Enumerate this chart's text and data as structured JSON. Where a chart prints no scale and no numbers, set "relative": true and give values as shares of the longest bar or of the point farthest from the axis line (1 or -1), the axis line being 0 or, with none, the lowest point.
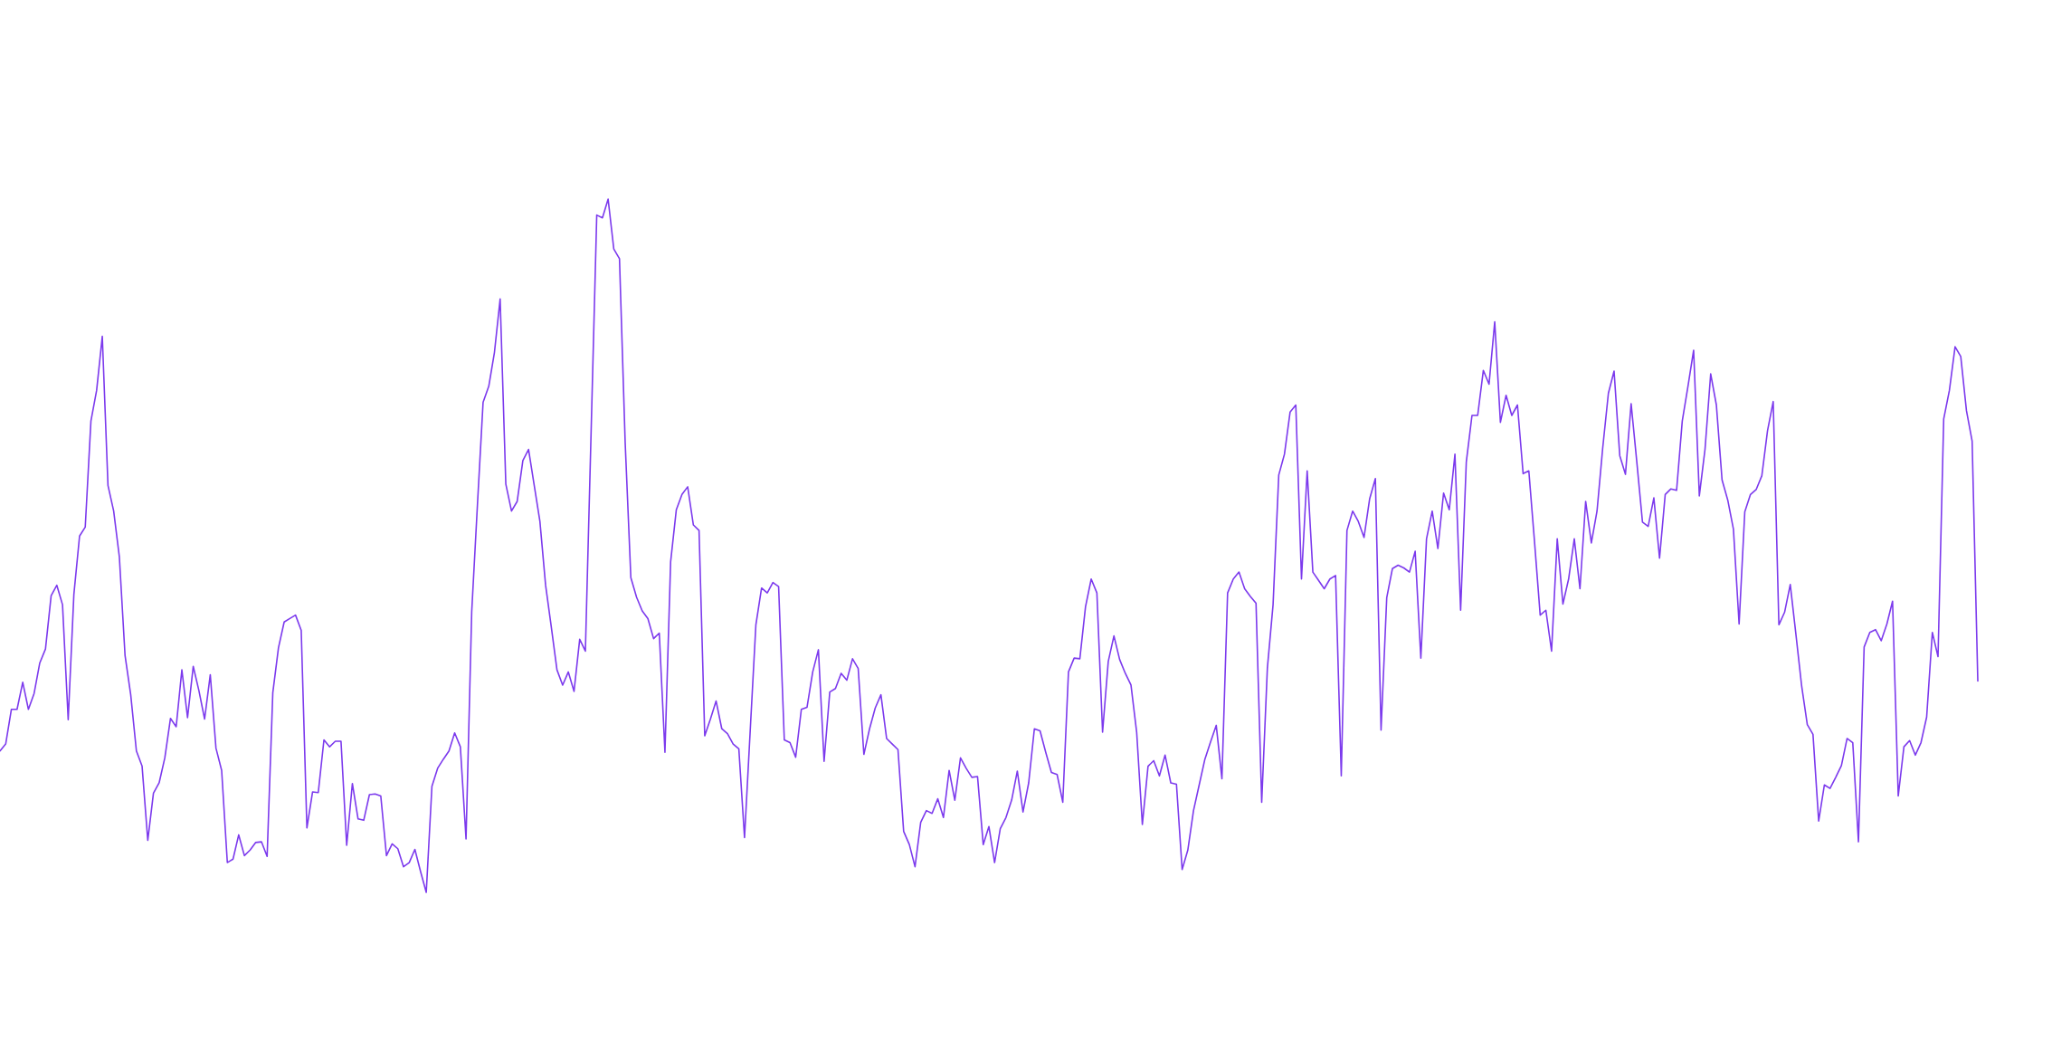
{
  "chart_data": {
    "type": "line",
    "relative": true,
    "color": "#7c3aed",
    "categories": [
      null,
      null,
      null,
      null,
      null,
      null,
      null,
      null,
      null,
      null,
      null,
      null,
      null,
      null,
      null,
      null,
      null,
      null,
      null,
      null,
      null,
      null,
      null,
      null,
      null,
      null,
      null,
      null,
      null,
      null,
      null,
      null,
      null,
      null,
      null,
      null,
      null,
      null,
      null,
      null,
      null,
      null,
      null,
      null,
      null,
      null,
      null,
      null,
      null,
      null,
      null,
      null,
      null,
      null,
      null,
      null,
      null,
      null,
      null,
      null,
      null,
      null,
      null,
      null,
      null,
      null,
      null,
      null,
      null,
      null,
      null,
      null,
      null,
      null,
      null,
      null,
      null,
      null,
      null,
      null,
      null,
      null,
      null,
      null,
      null,
      null,
      null,
      null,
      null,
      null,
      null,
      null,
      null,
      null,
      null,
      null,
      null,
      null,
      null,
      null,
      null,
      null,
      null,
      null,
      null,
      null,
      null,
      null,
      null,
      null,
      null,
      null,
      null,
      null,
      null,
      null,
      null,
      null,
      null,
      null,
      null,
      null,
      null,
      null,
      null,
      null,
      null,
      null,
      null,
      null,
      null,
      null,
      null,
      null,
      null,
      null,
      null,
      null,
      null,
      null,
      null,
      null,
      null,
      null,
      null,
      null,
      null,
      null,
      null,
      null,
      null,
      null,
      null,
      null,
      null,
      null,
      null,
      null,
      null,
      null,
      null,
      null,
      null,
      null,
      null,
      null,
      null,
      null,
      null,
      null,
      null,
      null,
      null,
      null,
      null,
      null,
      null,
      null,
      null,
      null,
      null,
      null,
      null,
      null,
      null,
      null,
      null,
      null,
      null,
      null,
      null,
      null,
      null,
      null,
      null,
      null,
      null,
      null,
      null,
      null,
      null,
      null,
      null,
      null,
      null,
      null,
      null,
      null,
      null,
      null,
      null,
      null,
      null,
      null,
      null,
      null,
      null,
      null,
      null,
      null,
      null,
      null,
      null,
      null,
      null,
      null,
      null,
      null,
      null,
      null,
      null,
      null,
      null,
      null,
      null,
      null,
      null,
      null,
      null,
      null,
      null,
      null,
      null,
      null,
      null,
      null,
      null,
      null,
      null,
      null,
      null,
      null,
      null,
      null,
      null,
      null,
      null,
      null,
      null,
      null,
      null,
      null,
      null,
      null,
      null,
      null,
      null,
      null,
      null,
      null,
      null,
      null,
      null,
      null,
      null,
      null,
      null,
      null,
      null,
      null,
      null,
      null,
      null,
      null,
      null,
      null,
      null,
      null,
      null,
      null,
      null,
      null,
      null,
      null,
      null,
      null,
      null,
      null,
      null,
      null,
      null,
      null,
      null,
      null,
      null,
      null,
      null,
      null,
      null,
      null,
      null,
      null,
      null,
      null,
      null,
      null,
      null,
      null,
      null,
      null,
      null,
      null,
      null,
      null,
      null,
      null,
      null,
      null,
      null,
      null,
      null,
      null,
      null,
      null,
      null,
      null,
      null,
      null,
      null,
      null,
      null,
      null,
      null,
      null,
      null,
      null,
      null,
      null,
      null
    ],
    "values": [
      0.204,
      0.214,
      0.264,
      0.264,
      0.303,
      0.264,
      0.287,
      0.331,
      0.351,
      0.428,
      0.443,
      0.415,
      0.249,
      0.43,
      0.514,
      0.527,
      0.68,
      0.724,
      0.802,
      0.587,
      0.55,
      0.484,
      0.342,
      0.285,
      0.204,
      0.182,
      0.075,
      0.143,
      0.158,
      0.194,
      0.251,
      0.239,
      0.321,
      0.252,
      0.326,
      0.291,
      0.25,
      0.314,
      0.208,
      0.176,
      0.043,
      0.048,
      0.083,
      0.053,
      0.061,
      0.072,
      0.073,
      0.052,
      0.288,
      0.353,
      0.39,
      0.395,
      0.4,
      0.378,
      0.093,
      0.145,
      0.144,
      0.22,
      0.21,
      0.218,
      0.218,
      0.068,
      0.157,
      0.106,
      0.104,
      0.141,
      0.142,
      0.139,
      0.053,
      0.07,
      0.063,
      0.037,
      0.043,
      0.062,
      0.03,
      0,
      0.153,
      0.179,
      0.192,
      0.204,
      0.23,
      0.21,
      0.077,
      0.405,
      0.558,
      0.707,
      0.73,
      0.779,
      0.856,
      0.589,
      0.55,
      0.564,
      0.623,
      0.639,
      0.587,
      0.535,
      0.443,
      0.383,
      0.321,
      0.299,
      0.318,
      0.29,
      0.365,
      0.348,
      0.662,
      0.977,
      0.973,
      1,
      0.928,
      0.914,
      0.649,
      0.454,
      0.426,
      0.406,
      0.395,
      0.366,
      0.374,
      0.202,
      0.477,
      0.552,
      0.574,
      0.585,
      0.53,
      0.522,
      0.226,
      0.25,
      0.276,
      0.236,
      0.229,
      0.214,
      0.207,
      0.079,
      0.233,
      0.386,
      0.439,
      0.432,
      0.447,
      0.441,
      0.22,
      0.216,
      0.195,
      0.264,
      0.267,
      0.318,
      0.35,
      0.189,
      0.289,
      0.294,
      0.316,
      0.306,
      0.337,
      0.323,
      0.199,
      0.236,
      0.266,
      0.285,
      0.222,
      0.214,
      0.206,
      0.088,
      0.069,
      0.037,
      0.101,
      0.118,
      0.114,
      0.135,
      0.108,
      0.176,
      0.133,
      0.194,
      0.179,
      0.166,
      0.167,
      0.069,
      0.095,
      0.043,
      0.092,
      0.108,
      0.133,
      0.175,
      0.116,
      0.158,
      0.236,
      0.233,
      0.202,
      0.173,
      0.17,
      0.13,
      0.318,
      0.338,
      0.337,
      0.412,
      0.452,
      0.432,
      0.231,
      0.333,
      0.37,
      0.336,
      0.316,
      0.299,
      0.231,
      0.098,
      0.182,
      0.19,
      0.168,
      0.198,
      0.158,
      0.156,
      0.033,
      0.061,
      0.118,
      0.155,
      0.192,
      0.217,
      0.241,
      0.164,
      0.432,
      0.452,
      0.462,
      0.438,
      0.427,
      0.417,
      0.13,
      0.324,
      0.415,
      0.602,
      0.632,
      0.693,
      0.703,
      0.452,
      0.608,
      0.462,
      0.45,
      0.438,
      0.452,
      0.457,
      0.168,
      0.522,
      0.55,
      0.535,
      0.512,
      0.568,
      0.597,
      0.234,
      0.425,
      0.467,
      0.472,
      0.468,
      0.462,
      0.492,
      0.338,
      0.51,
      0.55,
      0.496,
      0.576,
      0.552,
      0.632,
      0.407,
      0.621,
      0.688,
      0.688,
      0.753,
      0.733,
      0.823,
      0.678,
      0.717,
      0.688,
      0.703,
      0.604,
      0.608,
      0.506,
      0.4,
      0.407,
      0.348,
      0.51,
      0.416,
      0.452,
      0.51,
      0.438,
      0.564,
      0.504,
      0.55,
      0.641,
      0.72,
      0.752,
      0.63,
      0.603,
      0.705,
      0.621,
      0.534,
      0.528,
      0.569,
      0.482,
      0.574,
      0.582,
      0.58,
      0.68,
      0.73,
      0.782,
      0.572,
      0.639,
      0.748,
      0.703,
      0.595,
      0.566,
      0.524,
      0.387,
      0.549,
      0.574,
      0.581,
      0.601,
      0.666,
      0.708,
      0.386,
      0.404,
      0.444,
      0.372,
      0.298,
      0.242,
      0.228,
      0.103,
      0.155,
      0.15,
      0.166,
      0.183,
      0.222,
      0.216,
      0.073,
      0.354,
      0.375,
      0.379,
      0.363,
      0.387,
      0.42,
      0.139,
      0.21,
      0.219,
      0.198,
      0.216,
      0.253,
      0.375,
      0.34,
      0.683,
      0.724,
      0.787,
      0.773,
      0.695,
      0.651,
      0.305
    ]
  }
}
